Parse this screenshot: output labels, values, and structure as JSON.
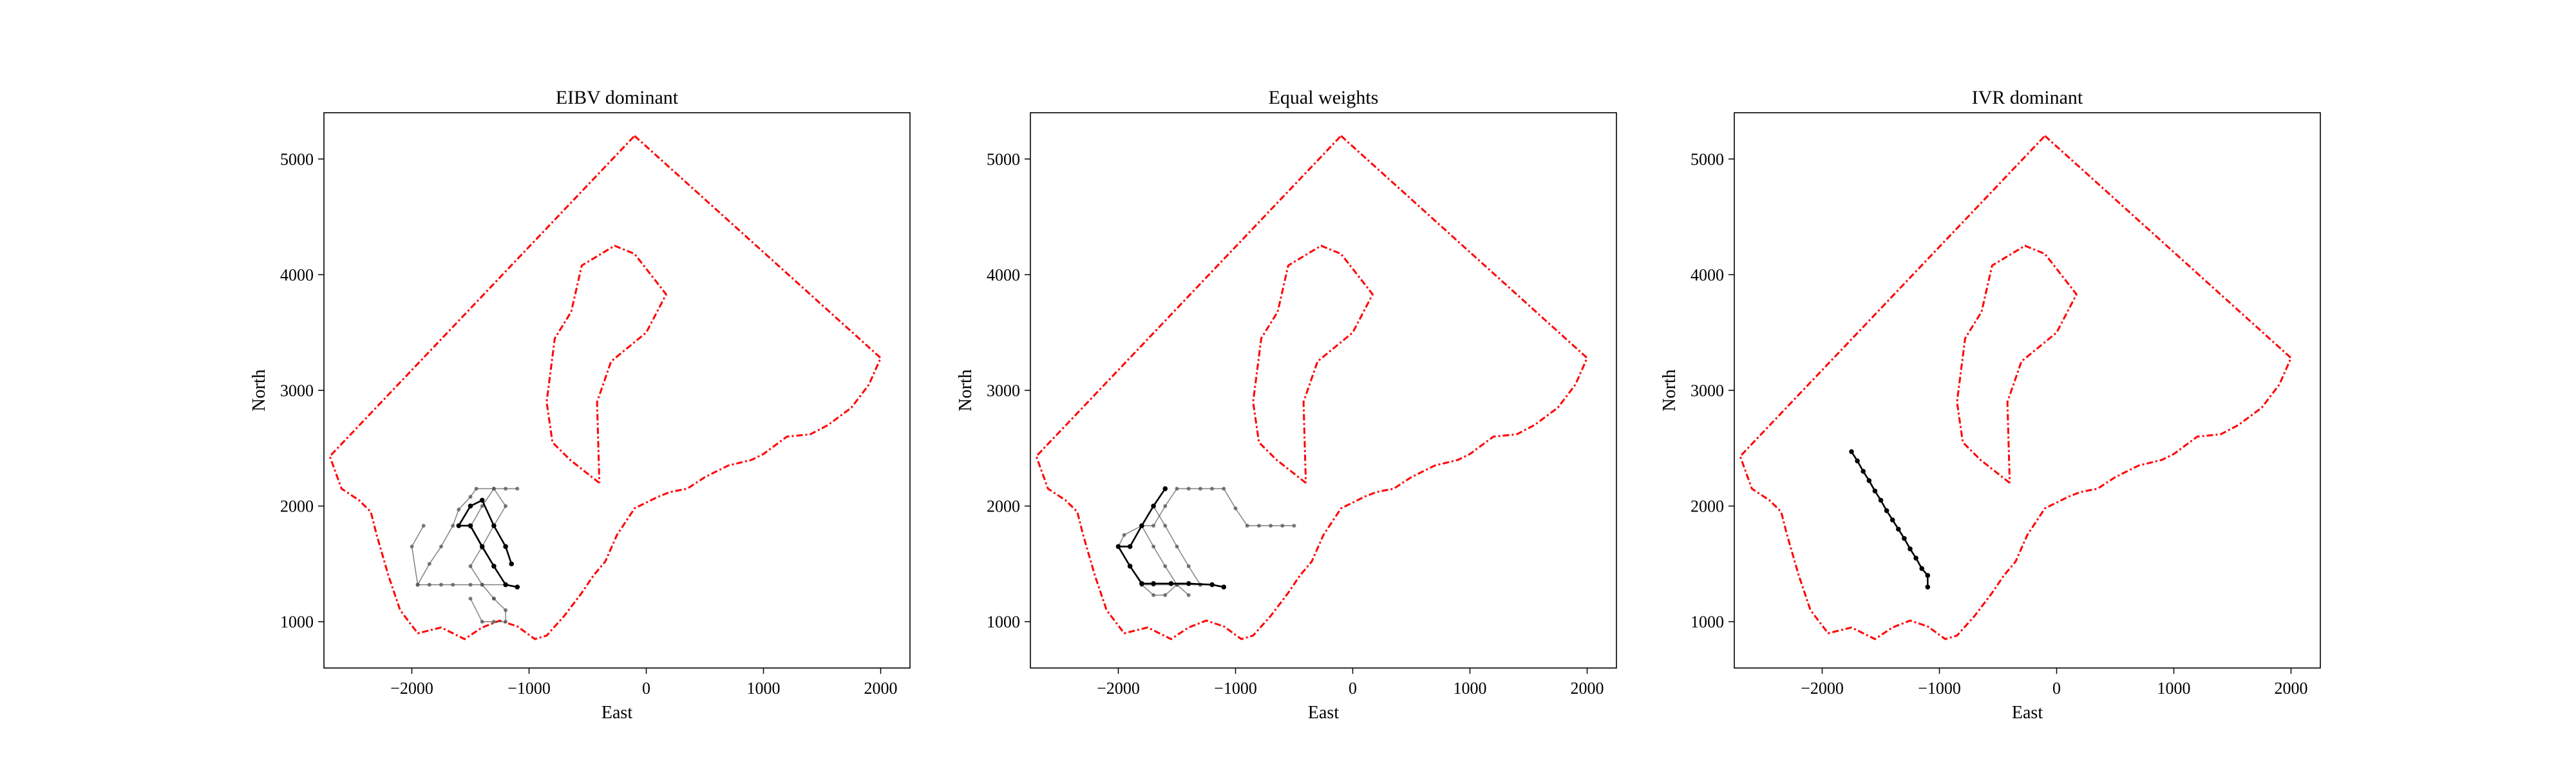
{
  "figure": {
    "background": "#ffffff"
  },
  "styles": {
    "boundary_color": "#ff0000",
    "path_color": "#000000",
    "path_faded_color": "#555555",
    "axes_color": "#000000"
  },
  "chart_data": [
    {
      "type": "line",
      "title": "EIBV dominant",
      "xlabel": "East",
      "ylabel": "North",
      "xlim": [
        -2750,
        2250
      ],
      "ylim": [
        600,
        5400
      ],
      "xticks": [
        -2000,
        -1000,
        0,
        1000,
        2000
      ],
      "xtick_labels": [
        "−2000",
        "−1000",
        "0",
        "1000",
        "2000"
      ],
      "yticks": [
        1000,
        2000,
        3000,
        4000,
        5000
      ],
      "ytick_labels": [
        "1000",
        "2000",
        "3000",
        "4000",
        "5000"
      ],
      "grid": false,
      "outer_boundary": {
        "x": [
          -100,
          2000,
          1900,
          1750,
          1550,
          1400,
          1200,
          1000,
          900,
          700,
          500,
          350,
          200,
          100,
          -100,
          -250,
          -350,
          -450,
          -550,
          -700,
          -850,
          -950,
          -1100,
          -1250,
          -1400,
          -1550,
          -1750,
          -1950,
          -2100,
          -2200,
          -2300,
          -2350,
          -2450,
          -2600,
          -2700,
          -100
        ],
        "y": [
          5200,
          3280,
          3050,
          2850,
          2700,
          2620,
          2600,
          2450,
          2400,
          2350,
          2250,
          2150,
          2120,
          2080,
          1980,
          1750,
          1520,
          1400,
          1250,
          1050,
          880,
          850,
          960,
          1010,
          950,
          850,
          950,
          900,
          1100,
          1400,
          1750,
          1950,
          2050,
          2150,
          2430,
          5200
        ]
      },
      "inner_boundary": {
        "x": [
          -400,
          -650,
          -800,
          -850,
          -780,
          -640,
          -550,
          -270,
          -100,
          170,
          0,
          -300,
          -420,
          -400
        ],
        "y": [
          2200,
          2400,
          2550,
          2900,
          3450,
          3680,
          4080,
          4250,
          4180,
          3830,
          3500,
          3250,
          2900,
          2200
        ]
      },
      "paths": [
        {
          "style": "faded",
          "x": [
            -1100,
            -1200,
            -1400,
            -1500,
            -1650,
            -1750,
            -1850,
            -1950,
            -1850,
            -1750,
            -1650,
            -1600,
            -1500,
            -1450,
            -1300,
            -1200,
            -1100
          ],
          "y": [
            1300,
            1320,
            1320,
            1320,
            1320,
            1320,
            1320,
            1320,
            1500,
            1650,
            1830,
            1970,
            2080,
            2150,
            2150,
            2150,
            2150
          ]
        },
        {
          "style": "faded",
          "x": [
            -1200,
            -1300,
            -1400,
            -1500,
            -1400,
            -1300,
            -1200,
            -1300,
            -1400,
            -1500,
            -1400,
            -1300
          ],
          "y": [
            1320,
            1480,
            1640,
            1820,
            2000,
            2150,
            2000,
            1830,
            1650,
            1480,
            1320,
            1200
          ]
        },
        {
          "style": "faded",
          "x": [
            -1300,
            -1200,
            -1200,
            -1300,
            -1400,
            -1500
          ],
          "y": [
            1200,
            1100,
            1000,
            1000,
            1000,
            1200
          ]
        },
        {
          "style": "faded",
          "x": [
            -1950,
            -2000,
            -1900
          ],
          "y": [
            1320,
            1650,
            1830
          ]
        },
        {
          "style": "solid",
          "x": [
            -1100,
            -1200,
            -1300,
            -1400,
            -1500,
            -1600,
            -1500,
            -1400,
            -1300,
            -1200,
            -1150
          ],
          "y": [
            1300,
            1320,
            1480,
            1650,
            1830,
            1830,
            2000,
            2050,
            1830,
            1650,
            1500
          ]
        }
      ]
    },
    {
      "type": "line",
      "title": "Equal weights",
      "xlabel": "East",
      "ylabel": "North",
      "xlim": [
        -2750,
        2250
      ],
      "ylim": [
        600,
        5400
      ],
      "xticks": [
        -2000,
        -1000,
        0,
        1000,
        2000
      ],
      "xtick_labels": [
        "−2000",
        "−1000",
        "0",
        "1000",
        "2000"
      ],
      "yticks": [
        1000,
        2000,
        3000,
        4000,
        5000
      ],
      "ytick_labels": [
        "1000",
        "2000",
        "3000",
        "4000",
        "5000"
      ],
      "grid": false,
      "outer_boundary": {
        "x": [
          -100,
          2000,
          1900,
          1750,
          1550,
          1400,
          1200,
          1000,
          900,
          700,
          500,
          350,
          200,
          100,
          -100,
          -250,
          -350,
          -450,
          -550,
          -700,
          -850,
          -950,
          -1100,
          -1250,
          -1400,
          -1550,
          -1750,
          -1950,
          -2100,
          -2200,
          -2300,
          -2350,
          -2450,
          -2600,
          -2700,
          -100
        ],
        "y": [
          5200,
          3280,
          3050,
          2850,
          2700,
          2620,
          2600,
          2450,
          2400,
          2350,
          2250,
          2150,
          2120,
          2080,
          1980,
          1750,
          1520,
          1400,
          1250,
          1050,
          880,
          850,
          960,
          1010,
          950,
          850,
          950,
          900,
          1100,
          1400,
          1750,
          1950,
          2050,
          2150,
          2430,
          5200
        ]
      },
      "inner_boundary": {
        "x": [
          -400,
          -650,
          -800,
          -850,
          -780,
          -640,
          -550,
          -270,
          -100,
          170,
          0,
          -300,
          -420,
          -400
        ],
        "y": [
          2200,
          2400,
          2550,
          2900,
          3450,
          3680,
          4080,
          4250,
          4180,
          3830,
          3500,
          3250,
          2900,
          2200
        ]
      },
      "paths": [
        {
          "style": "faded",
          "x": [
            -1100,
            -1200,
            -1300,
            -1500,
            -1700,
            -1800,
            -1900,
            -2000,
            -1950,
            -1800,
            -1700,
            -1600,
            -1500,
            -1400,
            -1300,
            -1200,
            -1100,
            -1000,
            -900,
            -800,
            -700,
            -600,
            -500
          ],
          "y": [
            1300,
            1320,
            1320,
            1320,
            1320,
            1320,
            1480,
            1650,
            1750,
            1830,
            1830,
            2000,
            2150,
            2150,
            2150,
            2150,
            2150,
            1980,
            1830,
            1830,
            1830,
            1830,
            1830
          ]
        },
        {
          "style": "faded",
          "x": [
            -1300,
            -1400,
            -1500,
            -1600,
            -1700,
            -1800,
            -1700,
            -1600,
            -1500,
            -1400
          ],
          "y": [
            1320,
            1480,
            1650,
            1830,
            2000,
            1830,
            1650,
            1480,
            1320,
            1230
          ]
        },
        {
          "style": "faded",
          "x": [
            -1500,
            -1600,
            -1700,
            -1800
          ],
          "y": [
            1320,
            1230,
            1230,
            1320
          ]
        },
        {
          "style": "solid",
          "x": [
            -1100,
            -1200,
            -1400,
            -1550,
            -1700,
            -1800,
            -1900,
            -2000,
            -1900,
            -1800,
            -1700,
            -1600
          ],
          "y": [
            1300,
            1320,
            1330,
            1330,
            1330,
            1330,
            1480,
            1650,
            1650,
            1830,
            2000,
            2150
          ]
        }
      ]
    },
    {
      "type": "line",
      "title": "IVR dominant",
      "xlabel": "East",
      "ylabel": "North",
      "xlim": [
        -2750,
        2250
      ],
      "ylim": [
        600,
        5400
      ],
      "xticks": [
        -2000,
        -1000,
        0,
        1000,
        2000
      ],
      "xtick_labels": [
        "−2000",
        "−1000",
        "0",
        "1000",
        "2000"
      ],
      "yticks": [
        1000,
        2000,
        3000,
        4000,
        5000
      ],
      "ytick_labels": [
        "1000",
        "2000",
        "3000",
        "4000",
        "5000"
      ],
      "grid": false,
      "outer_boundary": {
        "x": [
          -100,
          2000,
          1900,
          1750,
          1550,
          1400,
          1200,
          1000,
          900,
          700,
          500,
          350,
          200,
          100,
          -100,
          -250,
          -350,
          -450,
          -550,
          -700,
          -850,
          -950,
          -1100,
          -1250,
          -1400,
          -1550,
          -1750,
          -1950,
          -2100,
          -2200,
          -2300,
          -2350,
          -2450,
          -2600,
          -2700,
          -100
        ],
        "y": [
          5200,
          3280,
          3050,
          2850,
          2700,
          2620,
          2600,
          2450,
          2400,
          2350,
          2250,
          2150,
          2120,
          2080,
          1980,
          1750,
          1520,
          1400,
          1250,
          1050,
          880,
          850,
          960,
          1010,
          950,
          850,
          950,
          900,
          1100,
          1400,
          1750,
          1950,
          2050,
          2150,
          2430,
          5200
        ]
      },
      "inner_boundary": {
        "x": [
          -400,
          -650,
          -800,
          -850,
          -780,
          -640,
          -550,
          -270,
          -100,
          170,
          0,
          -300,
          -420,
          -400
        ],
        "y": [
          2200,
          2400,
          2550,
          2900,
          3450,
          3680,
          4080,
          4250,
          4180,
          3830,
          3500,
          3250,
          2900,
          2200
        ]
      },
      "paths": [
        {
          "style": "solid",
          "x": [
            -1750,
            -1700,
            -1650,
            -1600,
            -1550,
            -1500,
            -1450,
            -1400,
            -1350,
            -1300,
            -1250,
            -1200,
            -1150,
            -1100,
            -1100
          ],
          "y": [
            2470,
            2390,
            2300,
            2220,
            2130,
            2050,
            1960,
            1880,
            1800,
            1720,
            1630,
            1550,
            1460,
            1400,
            1300
          ]
        }
      ]
    }
  ]
}
